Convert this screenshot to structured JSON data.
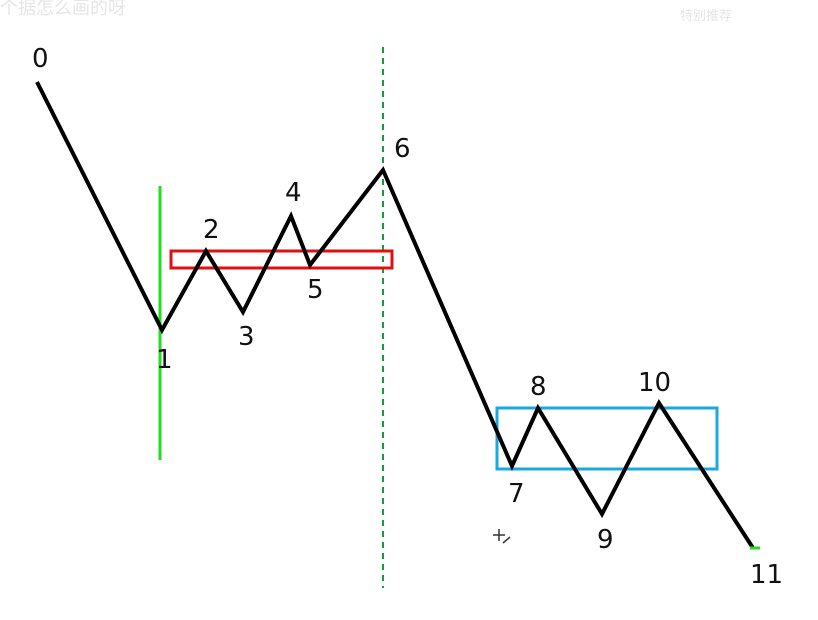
{
  "header": {
    "left_text": "个据怎么画的呀",
    "right_text": "特别推荐"
  },
  "colors": {
    "wave": "#000000",
    "green_line": "#22dd22",
    "dashed_line": "#1a9a3a",
    "red_box": "#e01010",
    "blue_box": "#1aa8e0"
  },
  "wave_points": [
    {
      "label": "0"
    },
    {
      "label": "1"
    },
    {
      "label": "2"
    },
    {
      "label": "3"
    },
    {
      "label": "4"
    },
    {
      "label": "5"
    },
    {
      "label": "6"
    },
    {
      "label": "7"
    },
    {
      "label": "8"
    },
    {
      "label": "9"
    },
    {
      "label": "10"
    },
    {
      "label": "11"
    }
  ]
}
